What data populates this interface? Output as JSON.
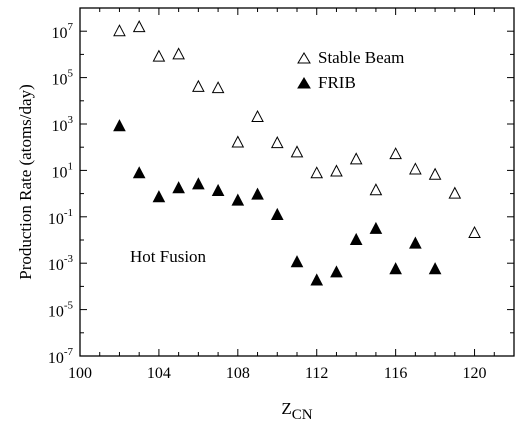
{
  "chart_data": {
    "type": "scatter",
    "xlabel": "Z",
    "xlabel_sub": "CN",
    "ylabel": "Production Rate (atoms/day)",
    "xlim": [
      100,
      122
    ],
    "ylim": [
      1e-07,
      100000000.0
    ],
    "yscale": "log",
    "x_ticks": [
      100,
      104,
      108,
      112,
      116,
      120
    ],
    "x_tick_labels": [
      "100",
      "104",
      "108",
      "112",
      "116",
      "120"
    ],
    "y_ticks": [
      1e-07,
      1e-05,
      0.001,
      0.1,
      10.0,
      1000.0,
      100000.0,
      10000000.0
    ],
    "y_tick_labels": [
      {
        "base": "10",
        "exp": "-7"
      },
      {
        "base": "10",
        "exp": "-5"
      },
      {
        "base": "10",
        "exp": "-3"
      },
      {
        "base": "10",
        "exp": "-1"
      },
      {
        "base": "10",
        "exp": "1"
      },
      {
        "base": "10",
        "exp": "3"
      },
      {
        "base": "10",
        "exp": "5"
      },
      {
        "base": "10",
        "exp": "7"
      }
    ],
    "grid": false,
    "legend_position": "top-right",
    "annotation": "Hot Fusion",
    "series": [
      {
        "name": "Stable Beam",
        "marker": "open-triangle",
        "color": "#000000",
        "x": [
          102,
          103,
          104,
          105,
          106,
          107,
          108,
          109,
          110,
          111,
          112,
          113,
          114,
          115,
          116,
          117,
          118,
          119,
          120
        ],
        "y": [
          10000000.0,
          15000000.0,
          800000.0,
          1000000.0,
          40000.0,
          35000.0,
          160,
          2000,
          150,
          60,
          7.5,
          9,
          30,
          1.4,
          50,
          11,
          6.5,
          1.0,
          0.02
        ]
      },
      {
        "name": "FRIB",
        "marker": "filled-triangle",
        "color": "#000000",
        "x": [
          102,
          103,
          104,
          105,
          106,
          107,
          108,
          109,
          110,
          111,
          112,
          113,
          114,
          115,
          116,
          117,
          118
        ],
        "y": [
          800,
          7.5,
          0.7,
          1.7,
          2.5,
          1.3,
          0.5,
          0.9,
          0.12,
          0.0011,
          0.00018,
          0.0004,
          0.01,
          0.03,
          0.00055,
          0.007,
          0.00055
        ]
      }
    ]
  }
}
